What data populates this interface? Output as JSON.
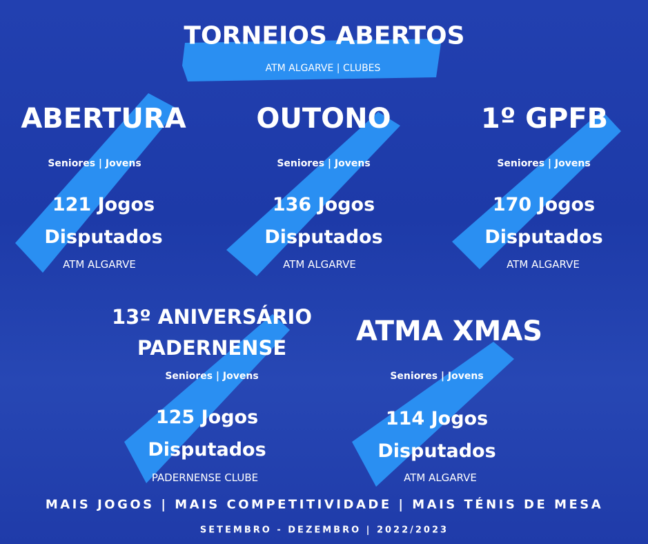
{
  "header": {
    "title": "TORNEIOS ABERTOS",
    "subtitle": "ATM ALGARVE | CLUBES"
  },
  "colors": {
    "background": "#1f3dab",
    "brush": "#2a8ff2",
    "text": "#ffffff"
  },
  "tournaments": [
    {
      "name": "ABERTURA",
      "categories": "Seniores | Jovens",
      "games": "121 Jogos",
      "games_label": "Disputados",
      "organizer": "ATM ALGARVE"
    },
    {
      "name": "OUTONO",
      "categories": "Seniores | Jovens",
      "games": "136 Jogos",
      "games_label": "Disputados",
      "organizer": "ATM ALGARVE"
    },
    {
      "name": "1º GPFB",
      "categories": "Seniores | Jovens",
      "games": "170 Jogos",
      "games_label": "Disputados",
      "organizer": "ATM ALGARVE"
    },
    {
      "name_line1": "13º ANIVERSÁRIO",
      "name_line2": "PADERNENSE",
      "categories": "Seniores | Jovens",
      "games": "125 Jogos",
      "games_label": "Disputados",
      "organizer": "PADERNENSE CLUBE"
    },
    {
      "name": "ATMA XMAS",
      "categories": "Seniores | Jovens",
      "games": "114 Jogos",
      "games_label": "Disputados",
      "organizer": "ATM ALGARVE"
    }
  ],
  "footer": {
    "tagline": "MAIS JOGOS | MAIS COMPETITIVIDADE | MAIS TÉNIS DE MESA",
    "period": "SETEMBRO - DEZEMBRO | 2022/2023"
  }
}
